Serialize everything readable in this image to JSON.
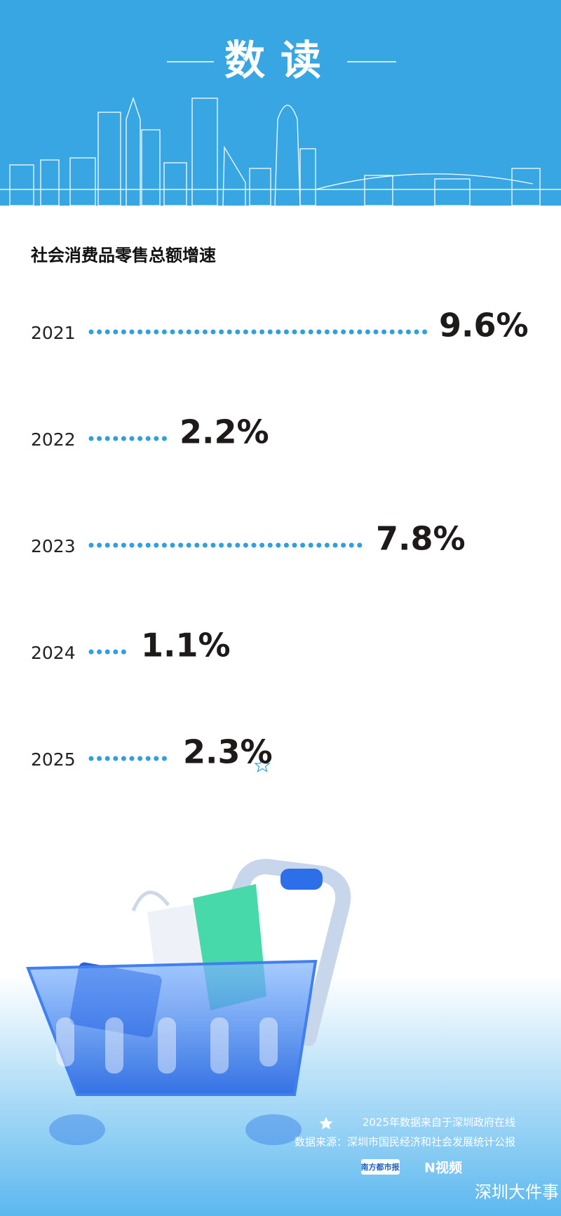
{
  "header": {
    "title": "数读"
  },
  "chart_data": {
    "type": "bar",
    "orientation": "horizontal",
    "title": "社会消费品零售总额增速",
    "categories": [
      "2021",
      "2022",
      "2023",
      "2024",
      "2025"
    ],
    "values": [
      9.6,
      2.2,
      7.8,
      1.1,
      2.3
    ],
    "value_labels": [
      "9.6%",
      "2.2%",
      "7.8%",
      "1.1%",
      "2.3%"
    ],
    "color": "#2f9fe0"
  },
  "footer": {
    "note": "2025年数据来自于深圳政府在线",
    "source": "数据来源：深圳市国民经济和社会发展统计公报",
    "logos": [
      "南方都市报",
      "N视频",
      "深圳大件事"
    ]
  }
}
